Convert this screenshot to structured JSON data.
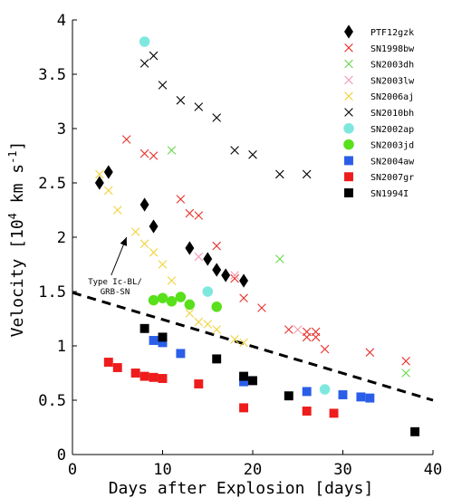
{
  "chart_data": {
    "type": "scatter",
    "title": "",
    "xlabel": "Days after Explosion [days]",
    "ylabel_prefix": "Velocity [10",
    "ylabel_exp": "4",
    "ylabel_suffix": " km s",
    "ylabel_exp2": "-1",
    "ylabel_close": "]",
    "xlim": [
      0,
      40
    ],
    "ylim": [
      0,
      4
    ],
    "xticks": [
      0,
      10,
      20,
      30,
      40
    ],
    "yticks": [
      0,
      0.5,
      1,
      1.5,
      2,
      2.5,
      3,
      3.5,
      4
    ],
    "ytick_labels": [
      "0",
      "0.5",
      "1",
      "1.5",
      "2",
      "2.5",
      "3",
      "3.5",
      "4"
    ],
    "grid": false,
    "legend_position": "top-right",
    "annotation": {
      "line1": "Type Ic-BL/",
      "line2": "GRB-SN",
      "arrow_from": [
        4.3,
        1.65
      ],
      "arrow_to": [
        6.0,
        2.0
      ]
    },
    "trend_line": {
      "style": "dashed",
      "color": "#000000",
      "x": [
        0,
        40
      ],
      "y": [
        1.49,
        0.5
      ]
    },
    "series": [
      {
        "name": "PTF12gzk",
        "marker": "diamond",
        "color": "#000000",
        "x": [
          3,
          4,
          8,
          9,
          13,
          15,
          16,
          17,
          19
        ],
        "y": [
          2.5,
          2.6,
          2.3,
          2.1,
          1.9,
          1.8,
          1.7,
          1.65,
          1.6
        ]
      },
      {
        "name": "SN1998bw",
        "marker": "x",
        "color": "#e8302a",
        "x": [
          6,
          8,
          9,
          12,
          13,
          14,
          16,
          18,
          19,
          21,
          24,
          26,
          26,
          27,
          27,
          28,
          33,
          37
        ],
        "y": [
          2.9,
          2.77,
          2.75,
          2.35,
          2.22,
          2.2,
          1.92,
          1.62,
          1.44,
          1.35,
          1.15,
          1.13,
          1.08,
          1.13,
          1.08,
          0.97,
          0.94,
          0.86
        ]
      },
      {
        "name": "SN2003dh",
        "marker": "x",
        "color": "#66d84a",
        "x": [
          11,
          23,
          37
        ],
        "y": [
          2.8,
          1.8,
          0.75
        ]
      },
      {
        "name": "SN2003lw",
        "marker": "x",
        "color": "#f29ab0",
        "x": [
          14,
          18,
          25
        ],
        "y": [
          1.82,
          1.65,
          1.15
        ]
      },
      {
        "name": "SN2006aj",
        "marker": "x",
        "color": "#f2d23a",
        "x": [
          3,
          4,
          5,
          7,
          8,
          9,
          10,
          11,
          13,
          14,
          15,
          16,
          18,
          19
        ],
        "y": [
          2.58,
          2.43,
          2.25,
          2.05,
          1.94,
          1.86,
          1.75,
          1.6,
          1.3,
          1.22,
          1.2,
          1.15,
          1.06,
          1.03
        ]
      },
      {
        "name": "SN2010bh",
        "marker": "x",
        "color": "#000000",
        "x": [
          8,
          9,
          10,
          12,
          14,
          16,
          18,
          20,
          23,
          26
        ],
        "y": [
          3.6,
          3.67,
          3.4,
          3.26,
          3.2,
          3.1,
          2.8,
          2.76,
          2.58,
          2.58
        ]
      },
      {
        "name": "SN2002ap",
        "marker": "circle",
        "color": "#7ee8de",
        "x": [
          8,
          15,
          28
        ],
        "y": [
          3.8,
          1.5,
          0.6
        ]
      },
      {
        "name": "SN2003jd",
        "marker": "circle",
        "color": "#58e01a",
        "x": [
          9,
          10,
          11,
          12,
          13,
          16
        ],
        "y": [
          1.42,
          1.44,
          1.41,
          1.45,
          1.38,
          1.36
        ]
      },
      {
        "name": "SN2004aw",
        "marker": "square",
        "color": "#2a5de8",
        "x": [
          9,
          10,
          12,
          19,
          26,
          30,
          32,
          33
        ],
        "y": [
          1.05,
          1.03,
          0.93,
          0.67,
          0.58,
          0.55,
          0.53,
          0.52
        ]
      },
      {
        "name": "SN2007gr",
        "marker": "square",
        "color": "#ee1c1c",
        "x": [
          4,
          5,
          7,
          8,
          9,
          10,
          14,
          19,
          26,
          29
        ],
        "y": [
          0.85,
          0.8,
          0.75,
          0.72,
          0.71,
          0.7,
          0.65,
          0.43,
          0.4,
          0.38
        ]
      },
      {
        "name": "SN1994I",
        "marker": "square",
        "color": "#000000",
        "x": [
          8,
          10,
          16,
          19,
          20,
          24,
          38
        ],
        "y": [
          1.16,
          1.08,
          0.88,
          0.72,
          0.68,
          0.54,
          0.21
        ]
      }
    ]
  }
}
